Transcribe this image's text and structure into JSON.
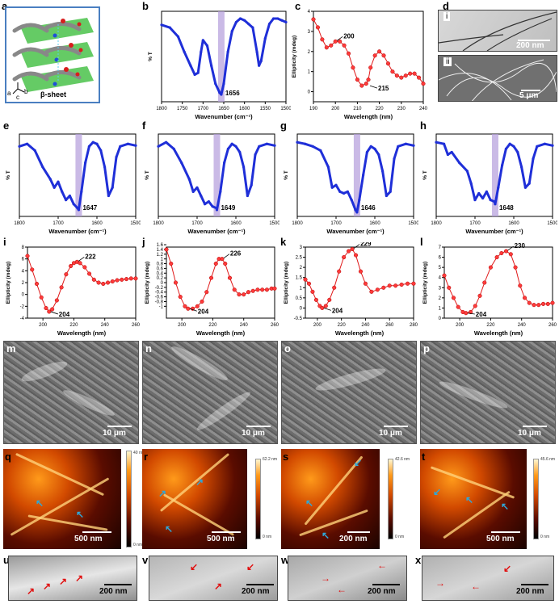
{
  "panel_labels": [
    "a",
    "b",
    "c",
    "d",
    "e",
    "f",
    "g",
    "h",
    "i",
    "j",
    "k",
    "l",
    "m",
    "n",
    "o",
    "p",
    "q",
    "r",
    "s",
    "t",
    "u",
    "v",
    "w",
    "x"
  ],
  "panel_a": {
    "caption": "β-sheet",
    "axes": [
      "a",
      "b",
      "c"
    ]
  },
  "panel_d": {
    "sub_i": "i",
    "sub_ii": "ii",
    "scale_i": "200 nm",
    "scale_ii": "5 μm"
  },
  "ftir_axis": {
    "xlabel": "Wavenumber (cm⁻¹)",
    "ylabel": "% T",
    "ticks": [
      "1800",
      "1700",
      "1600",
      "1500"
    ],
    "ticks_b": [
      "1800",
      "1750",
      "1700",
      "1650",
      "1600",
      "1550",
      "1500"
    ]
  },
  "cd_axis": {
    "xlabel": "Wavelength (nm)",
    "ylabel": "Ellipticity (mdeg)"
  },
  "peaks": {
    "b": "1656",
    "e": "1647",
    "f": "1649",
    "g": "1646",
    "h": "1648"
  },
  "cd_c": {
    "min": "215",
    "max": "200"
  },
  "cd_i": {
    "min": "204",
    "max": "222"
  },
  "cd_j": {
    "min": "204",
    "max": "226"
  },
  "cd_k": {
    "min": "204",
    "max": "229"
  },
  "cd_l": {
    "min": "204",
    "max": "230"
  },
  "sem_scale": "10 μm",
  "afm": {
    "q_scale": "500 nm",
    "r_scale": "500 nm",
    "s_scale": "200 nm",
    "t_scale": "500 nm",
    "q_top": "40 nm",
    "r_top": "62.2 nm",
    "s_top": "42.6 nm",
    "t_top": "45.6 nm",
    "bottom": "0 nm"
  },
  "tem_scale": "200 nm",
  "chart_data": [
    {
      "panel": "b",
      "type": "line",
      "xlabel": "Wavenumber (cm⁻¹)",
      "ylabel": "% T",
      "xlim": [
        1800,
        1500
      ],
      "x": [
        1800,
        1780,
        1760,
        1745,
        1730,
        1720,
        1712,
        1705,
        1700,
        1690,
        1680,
        1670,
        1660,
        1656,
        1650,
        1640,
        1630,
        1620,
        1610,
        1600,
        1590,
        1580,
        1570,
        1565,
        1560,
        1550,
        1540,
        1530,
        1520,
        1510,
        1500
      ],
      "y": [
        0.85,
        0.82,
        0.72,
        0.55,
        0.4,
        0.3,
        0.32,
        0.55,
        0.68,
        0.62,
        0.4,
        0.2,
        0.1,
        0.08,
        0.2,
        0.55,
        0.78,
        0.88,
        0.92,
        0.9,
        0.86,
        0.82,
        0.55,
        0.4,
        0.45,
        0.7,
        0.86,
        0.92,
        0.92,
        0.9,
        0.88
      ]
    },
    {
      "panel": "c",
      "type": "scatter",
      "xlabel": "Wavelength (nm)",
      "ylabel": "Ellipticity (mdeg)",
      "xlim": [
        190,
        240
      ],
      "ylim": [
        -0.5,
        4
      ],
      "yticks": [
        0,
        1,
        2,
        3,
        4
      ],
      "x": [
        190,
        192,
        194,
        196,
        198,
        200,
        202,
        204,
        206,
        208,
        210,
        212,
        214,
        215,
        216,
        218,
        220,
        222,
        224,
        226,
        228,
        230,
        232,
        234,
        236,
        238,
        240
      ],
      "y": [
        3.6,
        3.2,
        2.6,
        2.2,
        2.3,
        2.5,
        2.5,
        2.3,
        1.9,
        1.2,
        0.6,
        0.3,
        0.4,
        0.6,
        1.2,
        1.8,
        2.0,
        1.8,
        1.4,
        1.0,
        0.8,
        0.7,
        0.8,
        0.9,
        0.9,
        0.7,
        0.4
      ]
    },
    {
      "panel": "e",
      "type": "line",
      "xlabel": "Wavenumber (cm⁻¹)",
      "ylabel": "% T",
      "xlim": [
        1800,
        1500
      ],
      "x": [
        1800,
        1780,
        1760,
        1740,
        1720,
        1710,
        1700,
        1690,
        1680,
        1670,
        1660,
        1650,
        1647,
        1640,
        1630,
        1620,
        1610,
        1600,
        1590,
        1580,
        1570,
        1560,
        1550,
        1540,
        1520,
        1500
      ],
      "y": [
        0.85,
        0.88,
        0.8,
        0.6,
        0.45,
        0.35,
        0.42,
        0.3,
        0.2,
        0.25,
        0.15,
        0.1,
        0.08,
        0.3,
        0.65,
        0.85,
        0.9,
        0.88,
        0.8,
        0.6,
        0.25,
        0.35,
        0.72,
        0.85,
        0.88,
        0.86
      ]
    },
    {
      "panel": "f",
      "type": "line",
      "xlabel": "Wavenumber (cm⁻¹)",
      "ylabel": "% T",
      "xlim": [
        1800,
        1500
      ],
      "x": [
        1800,
        1780,
        1760,
        1740,
        1720,
        1710,
        1700,
        1690,
        1680,
        1670,
        1660,
        1650,
        1649,
        1640,
        1630,
        1620,
        1610,
        1600,
        1590,
        1580,
        1570,
        1560,
        1550,
        1540,
        1520,
        1500
      ],
      "y": [
        0.85,
        0.9,
        0.82,
        0.65,
        0.45,
        0.3,
        0.35,
        0.25,
        0.15,
        0.18,
        0.12,
        0.1,
        0.08,
        0.3,
        0.65,
        0.82,
        0.88,
        0.85,
        0.78,
        0.6,
        0.25,
        0.38,
        0.75,
        0.85,
        0.88,
        0.86
      ]
    },
    {
      "panel": "g",
      "type": "line",
      "xlabel": "Wavenumber (cm⁻¹)",
      "ylabel": "% T",
      "xlim": [
        1800,
        1500
      ],
      "x": [
        1800,
        1780,
        1760,
        1740,
        1720,
        1710,
        1700,
        1690,
        1680,
        1670,
        1660,
        1650,
        1646,
        1640,
        1630,
        1620,
        1610,
        1600,
        1590,
        1580,
        1570,
        1560,
        1550,
        1540,
        1520,
        1500
      ],
      "y": [
        0.9,
        0.88,
        0.85,
        0.8,
        0.6,
        0.35,
        0.38,
        0.3,
        0.28,
        0.3,
        0.2,
        0.08,
        0.05,
        0.2,
        0.5,
        0.78,
        0.85,
        0.82,
        0.75,
        0.55,
        0.25,
        0.3,
        0.7,
        0.85,
        0.88,
        0.86
      ]
    },
    {
      "panel": "h",
      "type": "line",
      "xlabel": "Wavenumber (cm⁻¹)",
      "ylabel": "% T",
      "xlim": [
        1800,
        1500
      ],
      "x": [
        1800,
        1780,
        1770,
        1760,
        1740,
        1720,
        1710,
        1700,
        1690,
        1680,
        1670,
        1660,
        1650,
        1648,
        1640,
        1630,
        1620,
        1610,
        1600,
        1590,
        1580,
        1570,
        1560,
        1550,
        1540,
        1520,
        1500
      ],
      "y": [
        0.9,
        0.88,
        0.75,
        0.78,
        0.65,
        0.55,
        0.4,
        0.2,
        0.28,
        0.22,
        0.3,
        0.2,
        0.18,
        0.15,
        0.35,
        0.62,
        0.82,
        0.88,
        0.85,
        0.78,
        0.6,
        0.35,
        0.4,
        0.7,
        0.85,
        0.88,
        0.86
      ]
    },
    {
      "panel": "i",
      "type": "scatter",
      "xlabel": "Wavelength (nm)",
      "ylabel": "Ellipticity (mdeg)",
      "xlim": [
        190,
        260
      ],
      "ylim": [
        -4,
        8
      ],
      "yticks": [
        -4,
        -2,
        0,
        2,
        4,
        6,
        8
      ],
      "xticks": [
        200,
        220,
        240,
        260
      ],
      "x": [
        190,
        193,
        196,
        199,
        202,
        204,
        206,
        209,
        212,
        215,
        218,
        220,
        222,
        224,
        227,
        230,
        233,
        236,
        239,
        242,
        245,
        248,
        251,
        254,
        257,
        260
      ],
      "y": [
        6.5,
        4.2,
        1.8,
        -0.5,
        -2.3,
        -2.9,
        -2.5,
        -1.0,
        1.2,
        3.4,
        4.8,
        5.3,
        5.5,
        5.3,
        4.6,
        3.5,
        2.5,
        2.0,
        1.8,
        2.0,
        2.2,
        2.4,
        2.5,
        2.6,
        2.7,
        2.7
      ]
    },
    {
      "panel": "j",
      "type": "scatter",
      "xlabel": "Wavelength (nm)",
      "ylabel": "Ellipticity (mdeg)",
      "xlim": [
        190,
        260
      ],
      "ylim": [
        -1.5,
        1.5
      ],
      "yticks": [
        -1.0,
        -0.8,
        -0.6,
        -0.4,
        -0.2,
        0.0,
        0.2,
        0.4,
        0.6,
        0.8,
        1.0,
        1.2,
        1.4,
        1.6
      ],
      "xticks": [
        200,
        220,
        240,
        260
      ],
      "x": [
        190,
        193,
        196,
        199,
        202,
        204,
        207,
        210,
        213,
        216,
        219,
        222,
        224,
        226,
        228,
        231,
        234,
        237,
        240,
        243,
        246,
        249,
        252,
        255,
        258,
        260
      ],
      "y": [
        1.4,
        0.8,
        0.0,
        -0.6,
        -1.0,
        -1.1,
        -1.1,
        -1.0,
        -0.8,
        -0.4,
        0.2,
        0.8,
        1.0,
        1.0,
        0.8,
        0.2,
        -0.3,
        -0.5,
        -0.5,
        -0.4,
        -0.35,
        -0.3,
        -0.3,
        -0.3,
        -0.25,
        -0.25
      ]
    },
    {
      "panel": "k",
      "type": "scatter",
      "xlabel": "Wavelength (nm)",
      "ylabel": "Ellipticity (mdeg)",
      "xlim": [
        190,
        280
      ],
      "ylim": [
        -0.5,
        3.0
      ],
      "yticks": [
        -0.5,
        0.0,
        0.5,
        1.0,
        1.5,
        2.0,
        2.5,
        3.0
      ],
      "xticks": [
        200,
        220,
        240,
        260,
        280
      ],
      "x": [
        190,
        193,
        196,
        199,
        202,
        204,
        207,
        210,
        214,
        218,
        222,
        226,
        229,
        232,
        236,
        240,
        245,
        250,
        255,
        260,
        265,
        270,
        275,
        280
      ],
      "y": [
        1.4,
        1.2,
        0.8,
        0.4,
        0.1,
        0.0,
        0.1,
        0.4,
        1.0,
        1.8,
        2.5,
        2.8,
        2.9,
        2.6,
        1.8,
        1.2,
        0.8,
        0.9,
        1.0,
        1.1,
        1.1,
        1.15,
        1.2,
        1.2
      ]
    },
    {
      "panel": "l",
      "type": "scatter",
      "xlabel": "Wavelength (nm)",
      "ylabel": "Ellipticity (mdeg)",
      "xlim": [
        190,
        260
      ],
      "ylim": [
        0,
        7
      ],
      "yticks": [
        0,
        1,
        2,
        3,
        4,
        5,
        6,
        7
      ],
      "xticks": [
        200,
        220,
        240,
        260
      ],
      "x": [
        190,
        193,
        196,
        199,
        202,
        204,
        207,
        210,
        213,
        216,
        220,
        224,
        227,
        230,
        233,
        236,
        239,
        242,
        245,
        248,
        251,
        254,
        257,
        260
      ],
      "y": [
        4.2,
        3.0,
        2.0,
        1.1,
        0.6,
        0.5,
        0.6,
        1.2,
        2.2,
        3.5,
        5.0,
        6.0,
        6.4,
        6.6,
        6.3,
        5.0,
        3.2,
        2.0,
        1.5,
        1.3,
        1.3,
        1.4,
        1.4,
        1.5
      ]
    }
  ]
}
